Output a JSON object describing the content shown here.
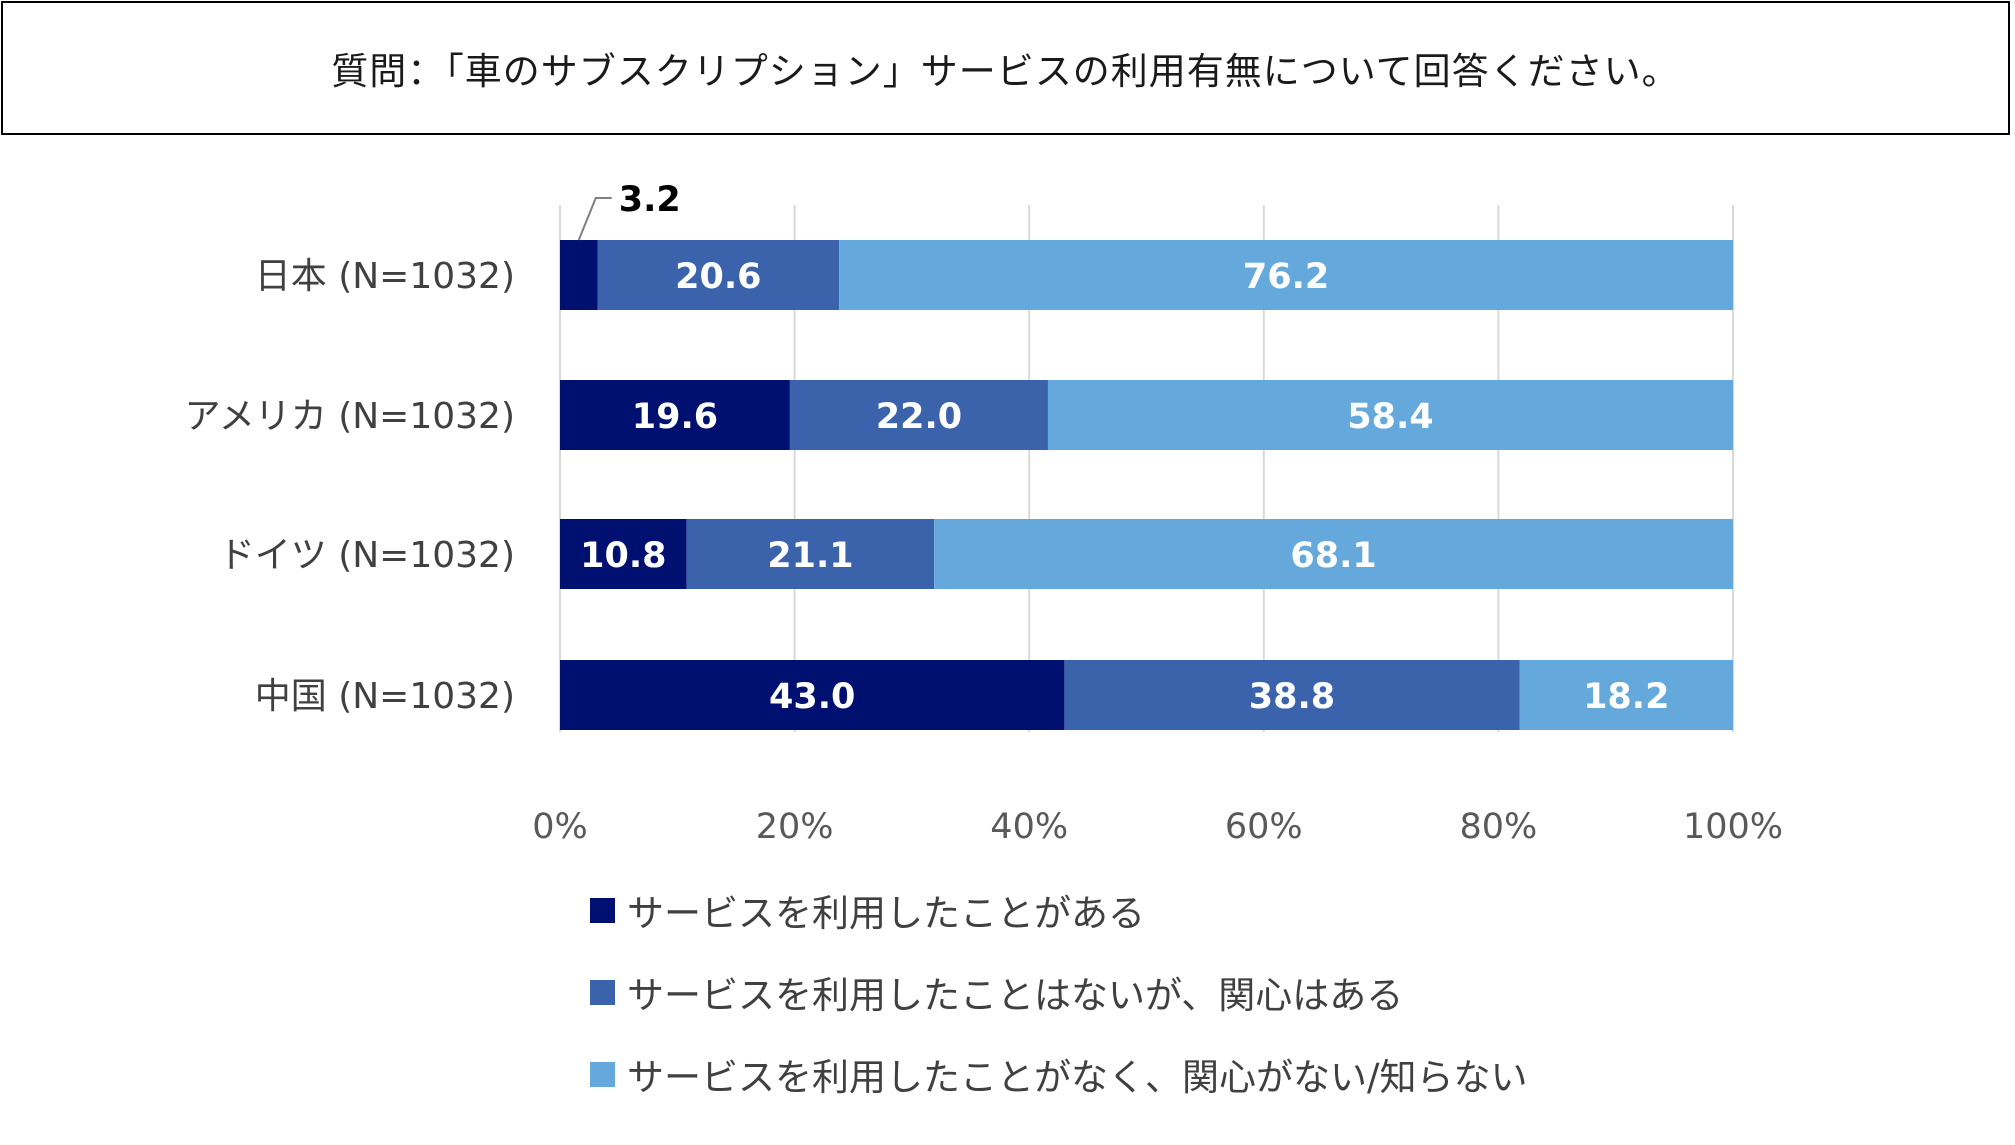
{
  "question": "質問：「車のサブスクリプション」サービスの利用有無について回答ください。",
  "chart_data": {
    "type": "bar",
    "orientation": "horizontal",
    "stacked": "percent",
    "categories": [
      "日本 (N=1032)",
      "アメリカ (N=1032)",
      "ドイツ (N=1032)",
      "中国 (N=1032)"
    ],
    "series": [
      {
        "name": "サービスを利用したことがある",
        "color": "#001070",
        "values": [
          3.2,
          19.6,
          10.8,
          43.0
        ],
        "labels": [
          "3.2",
          "19.6",
          "10.8",
          "43.0"
        ]
      },
      {
        "name": "サービスを利用したことはないが、関心はある",
        "color": "#3b63ac",
        "values": [
          20.6,
          22.0,
          21.1,
          38.8
        ],
        "labels": [
          "20.6",
          "22.0",
          "21.1",
          "38.8"
        ]
      },
      {
        "name": "サービスを利用したことがなく、関心がない/知らない",
        "color": "#65a8dc",
        "values": [
          76.2,
          58.4,
          68.1,
          18.2
        ],
        "labels": [
          "76.2",
          "58.4",
          "68.1",
          "18.2"
        ]
      }
    ],
    "x_ticks": [
      "0%",
      "20%",
      "40%",
      "60%",
      "80%",
      "100%"
    ],
    "xlim": [
      0,
      100
    ],
    "grid": true,
    "legend_position": "bottom"
  }
}
